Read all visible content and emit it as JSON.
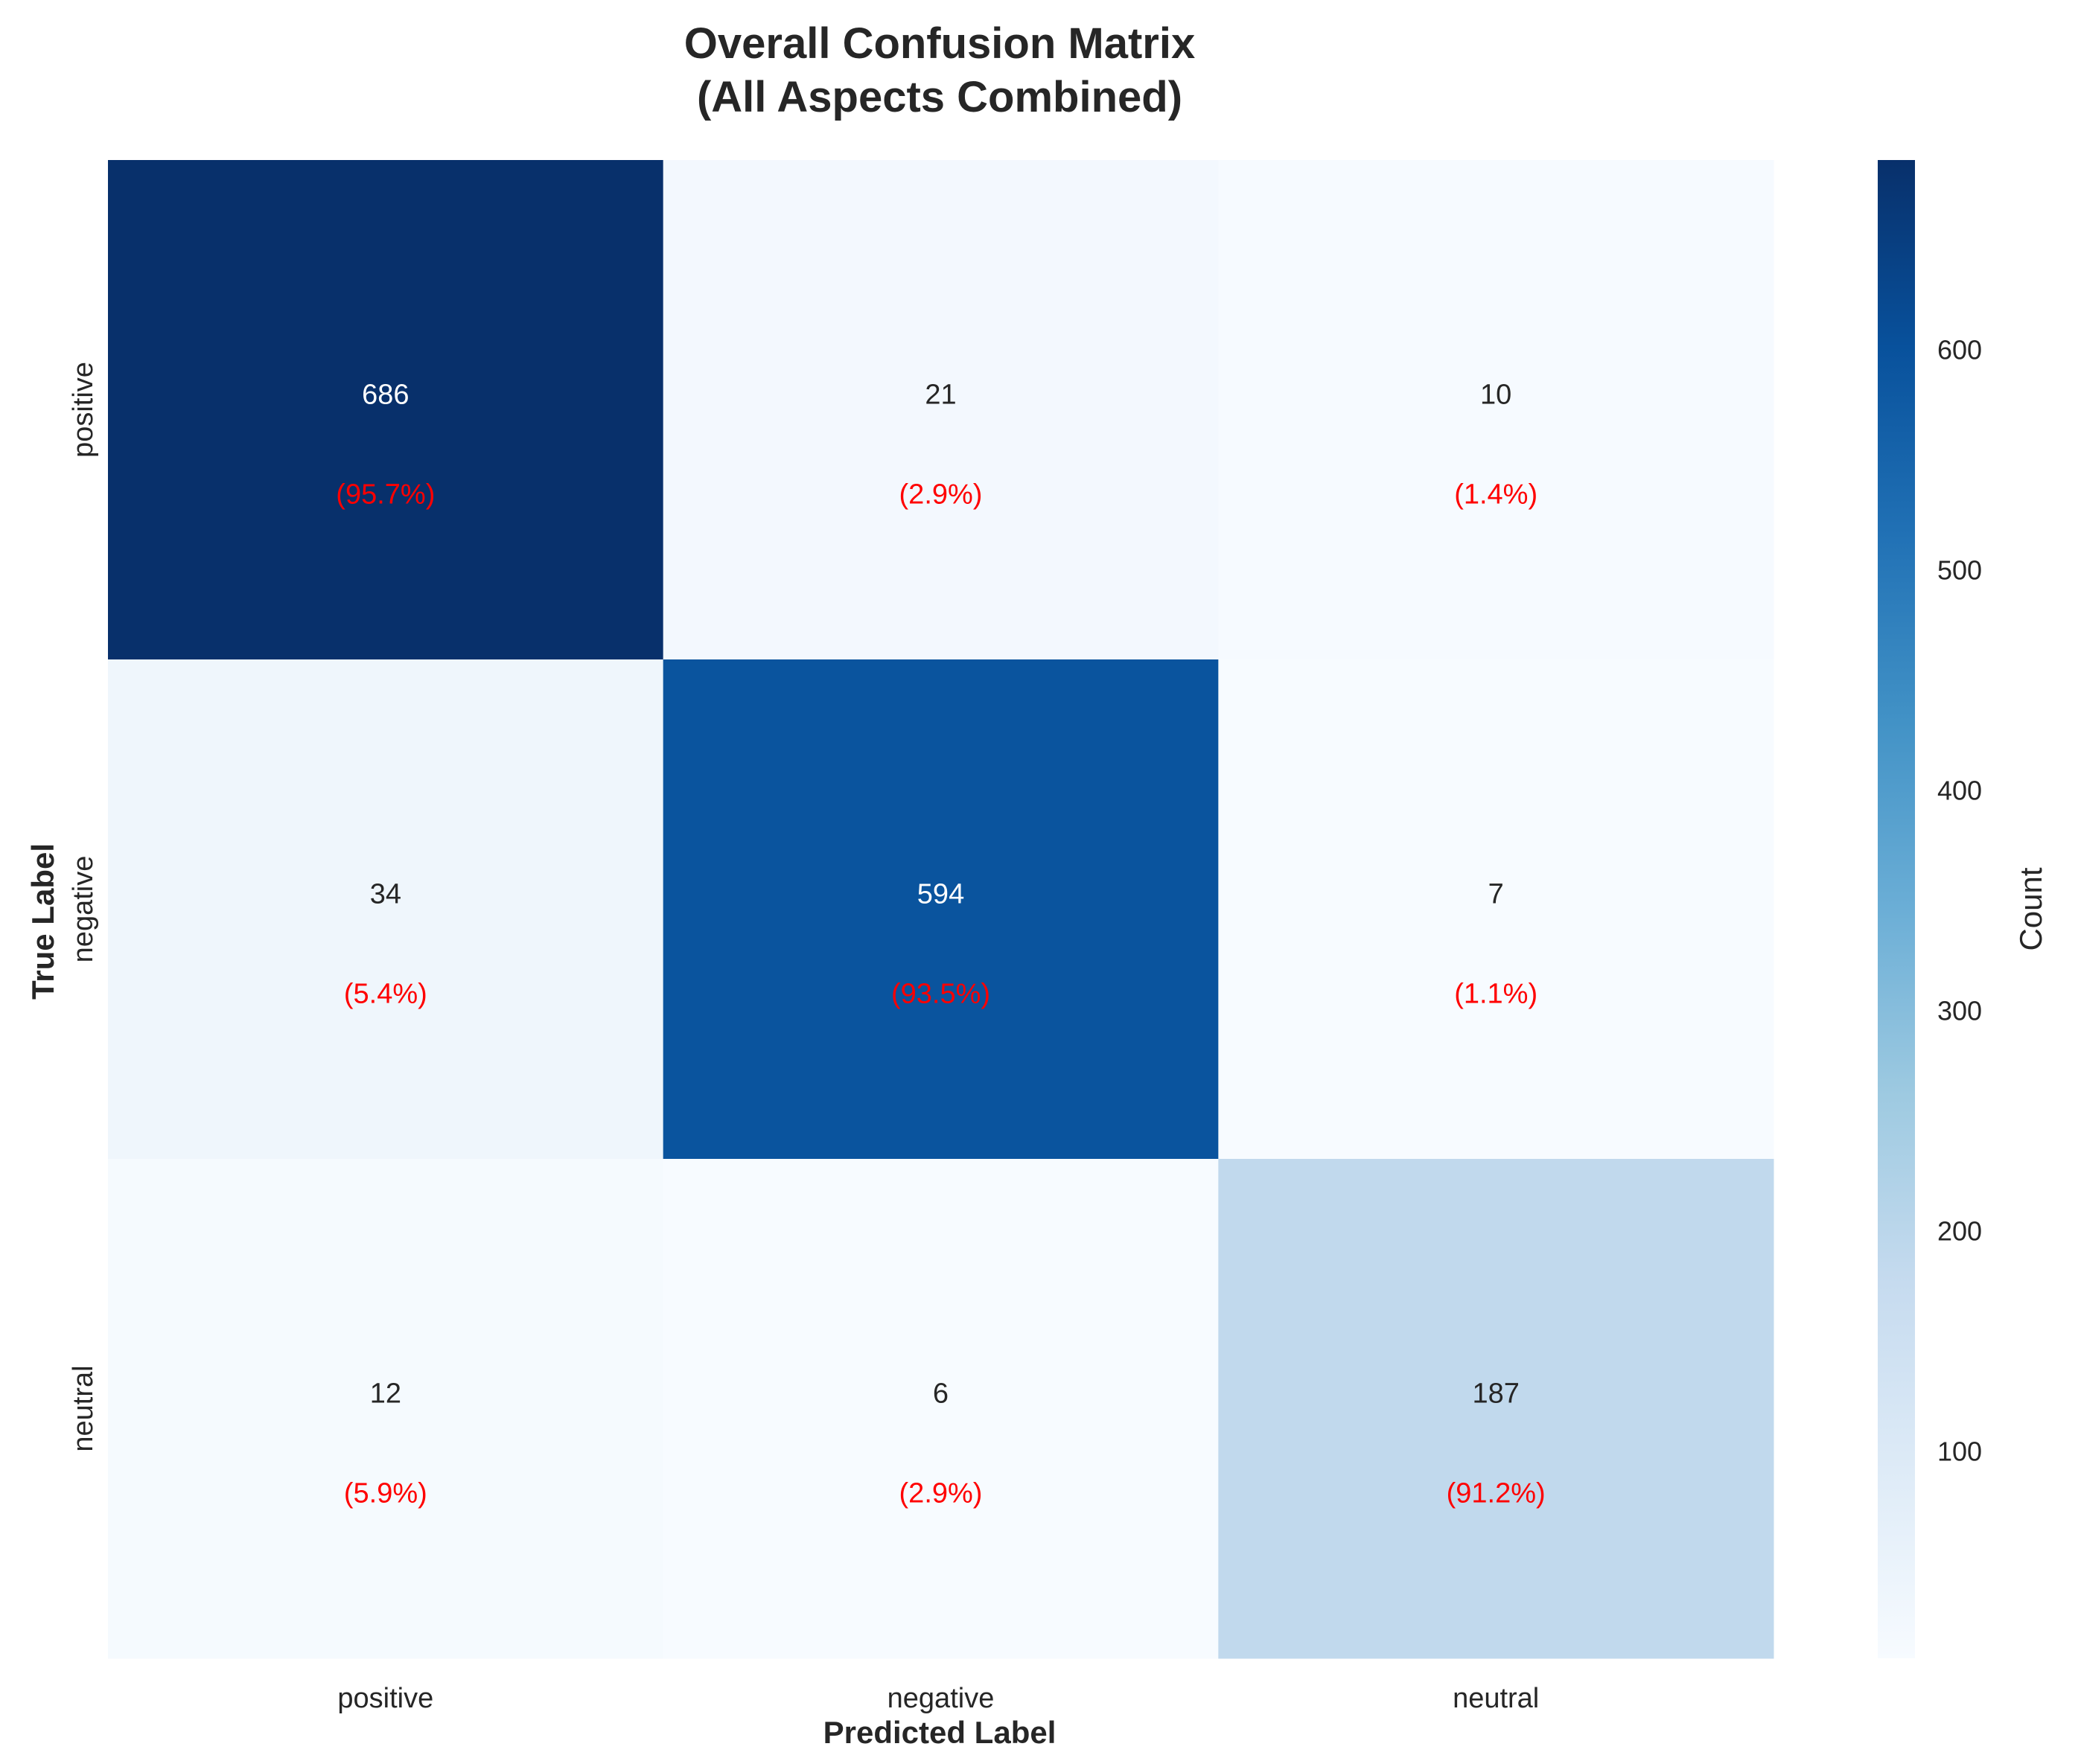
{
  "chart_data": {
    "type": "heatmap",
    "title_lines": [
      "Overall Confusion Matrix",
      "(All Aspects Combined)"
    ],
    "xlabel": "Predicted Label",
    "ylabel": "True Label",
    "x_categories": [
      "positive",
      "negative",
      "neutral"
    ],
    "y_categories": [
      "positive",
      "negative",
      "neutral"
    ],
    "values": [
      [
        686,
        21,
        10
      ],
      [
        34,
        594,
        7
      ],
      [
        12,
        6,
        187
      ]
    ],
    "percent_labels": [
      [
        "(95.7%)",
        "(2.9%)",
        "(1.4%)"
      ],
      [
        "(5.4%)",
        "(93.5%)",
        "(1.1%)"
      ],
      [
        "(5.9%)",
        "(2.9%)",
        "(91.2%)"
      ]
    ],
    "colormap": "Blues",
    "colorbar": {
      "label": "Count",
      "range": [
        6,
        686
      ],
      "ticks": [
        100,
        200,
        300,
        400,
        500,
        600
      ]
    },
    "percent_color": "#ff0000"
  }
}
